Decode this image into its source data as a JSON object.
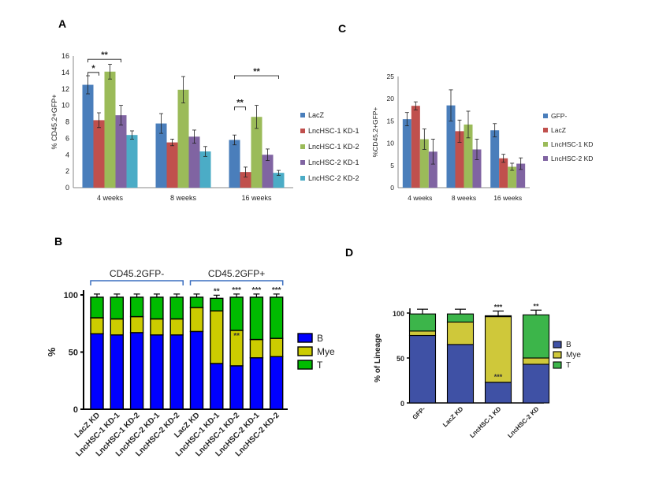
{
  "panel_letters": {
    "a": "A",
    "b": "B",
    "c": "C",
    "d": "D"
  },
  "colors": {
    "blue": "#4a7ebb",
    "red": "#c0504d",
    "green": "#9bbb59",
    "purple": "#8064a2",
    "cyan": "#4bacc6",
    "b_blue": "#0000ff",
    "b_yellow": "#cccc00",
    "b_green": "#00bb00",
    "d_blue": "#3f51a5",
    "d_yellow": "#cfc83a",
    "d_green": "#3cb54a"
  },
  "chart_data": [
    {
      "panel": "A",
      "type": "bar",
      "ylabel": "% CD45.2+GFP+",
      "ylim": [
        0,
        16
      ],
      "yticks": [
        "0",
        "2",
        "4",
        "6",
        "8",
        "10",
        "12",
        "14",
        "16"
      ],
      "categories": [
        "4 weeks",
        "8 weeks",
        "16 weeks"
      ],
      "series": [
        {
          "name": "LacZ",
          "values": [
            12.5,
            7.8,
            5.8
          ],
          "errors": [
            1.1,
            1.2,
            0.6
          ]
        },
        {
          "name": "LncHSC-1 KD-1",
          "values": [
            8.2,
            5.5,
            1.9
          ],
          "errors": [
            0.9,
            0.4,
            0.6
          ]
        },
        {
          "name": "LncHSC-1 KD-2",
          "values": [
            14.1,
            11.9,
            8.6
          ],
          "errors": [
            0.9,
            1.6,
            1.4
          ]
        },
        {
          "name": "LncHSC-2 KD-1",
          "values": [
            8.8,
            6.2,
            4.0
          ],
          "errors": [
            1.2,
            0.8,
            0.7
          ]
        },
        {
          "name": "LncHSC-2 KD-2",
          "values": [
            6.4,
            4.4,
            1.8
          ],
          "errors": [
            0.5,
            0.6,
            0.3
          ]
        }
      ],
      "annotations": [
        {
          "text": "*",
          "group": 0,
          "from": 0,
          "to": 1,
          "y": 14.0
        },
        {
          "text": "**",
          "group": 0,
          "from": 0,
          "to": 3,
          "y": 15.6
        },
        {
          "text": "**",
          "group": 2,
          "from": 0,
          "to": 1,
          "y": 9.8
        },
        {
          "text": "**",
          "group": 2,
          "from": 0,
          "to": 4,
          "y": 13.6
        }
      ],
      "legend_position": "right"
    },
    {
      "panel": "C",
      "type": "bar",
      "ylabel": "%CD45.2+GFP+",
      "ylim": [
        0,
        25
      ],
      "yticks": [
        "0",
        "5",
        "10",
        "15",
        "20",
        "25"
      ],
      "categories": [
        "4 weeks",
        "8 weeks",
        "16 weeks"
      ],
      "series": [
        {
          "name": "GFP-",
          "values": [
            15.4,
            18.5,
            12.9
          ],
          "errors": [
            1.5,
            3.5,
            1.5
          ]
        },
        {
          "name": "LacZ",
          "values": [
            18.4,
            12.7,
            6.6
          ],
          "errors": [
            0.9,
            2.5,
            0.9
          ]
        },
        {
          "name": "LncHSC-1 KD",
          "values": [
            10.9,
            14.2,
            4.7
          ],
          "errors": [
            2.3,
            3.0,
            0.8
          ]
        },
        {
          "name": "LncHSC-2 KD",
          "values": [
            8.1,
            8.6,
            5.4
          ],
          "errors": [
            2.8,
            2.3,
            1.3
          ]
        }
      ],
      "legend_position": "right"
    },
    {
      "panel": "B",
      "type": "bar",
      "stacked": true,
      "ylabel": "%",
      "ylim": [
        0,
        100
      ],
      "yticks": [
        "0",
        "50",
        "100"
      ],
      "group_labels": [
        "CD45.2GFP-",
        "CD45.2GFP+"
      ],
      "categories": [
        "LacZ KD",
        "LncHSC-1 KD-1",
        "LncHSC-1 KD-2",
        "LncHSC-2 KD-1",
        "LncHSC-2 KD-2",
        "LacZ KD",
        "LncHSC-1 KD-1",
        "LncHSC-1 KD-2",
        "LncHSC-2 KD-1",
        "LncHSC-2 KD-2"
      ],
      "series": [
        {
          "name": "B",
          "values": [
            66,
            65,
            67,
            65,
            65,
            68,
            40,
            38,
            45,
            46
          ]
        },
        {
          "name": "Mye",
          "values": [
            14,
            14,
            14,
            14,
            14,
            21,
            46,
            31,
            16,
            16
          ]
        },
        {
          "name": "T",
          "values": [
            18,
            19,
            17,
            19,
            19,
            9,
            11,
            29,
            37,
            36
          ]
        }
      ],
      "totals": [
        98,
        98,
        98,
        98,
        98,
        98,
        97,
        98,
        98,
        98
      ],
      "significance": [
        "",
        "",
        "",
        "",
        "",
        "",
        "**",
        "***",
        "***",
        "***"
      ],
      "inner_significance": [
        "",
        "",
        "",
        "",
        "",
        "",
        "",
        "**",
        "",
        ""
      ],
      "legend_position": "right"
    },
    {
      "panel": "D",
      "type": "bar",
      "stacked": true,
      "ylabel": "% of Lineage",
      "ylim": [
        0,
        100
      ],
      "yticks": [
        "0",
        "50",
        "100"
      ],
      "categories": [
        "GFP-",
        "LacZ KD",
        "LncHSC-1 KD",
        "LncHSC-2 KD"
      ],
      "series": [
        {
          "name": "B",
          "values": [
            75,
            65,
            23,
            43
          ]
        },
        {
          "name": "Mye",
          "values": [
            5,
            25,
            73,
            7
          ]
        },
        {
          "name": "T",
          "values": [
            19,
            9,
            1,
            48
          ]
        }
      ],
      "totals": [
        99,
        99,
        97,
        98
      ],
      "significance": [
        "",
        "",
        "***",
        "**"
      ],
      "inner_significance": [
        "",
        "",
        "***",
        ""
      ],
      "legend_position": "right"
    }
  ]
}
